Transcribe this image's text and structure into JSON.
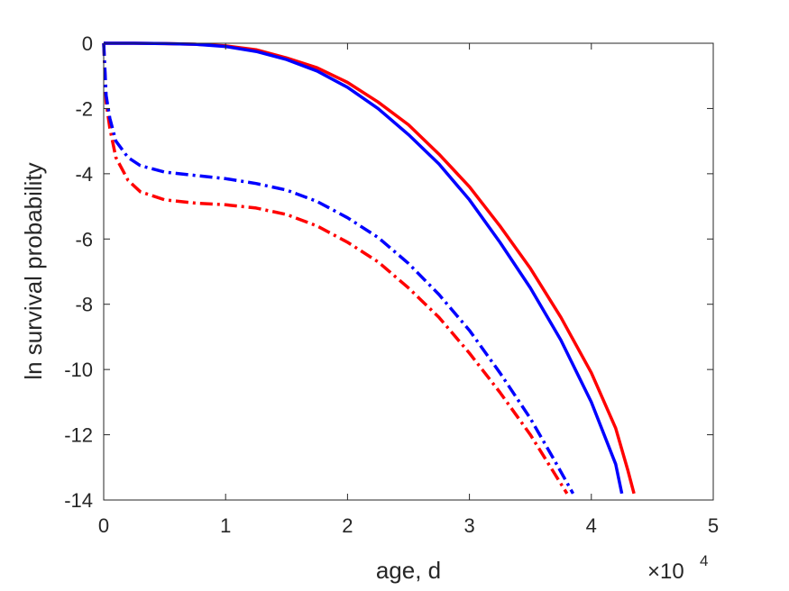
{
  "chart_data": {
    "type": "line",
    "title": "",
    "xlabel": "age, d",
    "ylabel": "ln survival probability",
    "x_multiplier": {
      "base": "×10",
      "exponent": "4"
    },
    "xlim": [
      0,
      5
    ],
    "ylim": [
      -14,
      0
    ],
    "xticks": [
      0,
      1,
      2,
      3,
      4,
      5
    ],
    "yticks": [
      0,
      -2,
      -4,
      -6,
      -8,
      -10,
      -12,
      -14
    ],
    "grid": false,
    "series": [
      {
        "color": "#ff0000",
        "style": "solid",
        "x": [
          0,
          0.25,
          0.5,
          0.75,
          1.0,
          1.25,
          1.5,
          1.75,
          2.0,
          2.25,
          2.5,
          2.75,
          3.0,
          3.25,
          3.5,
          3.75,
          4.0,
          4.2,
          4.3,
          4.35
        ],
        "y": [
          0,
          0,
          -0.01,
          -0.03,
          -0.08,
          -0.2,
          -0.45,
          -0.75,
          -1.2,
          -1.8,
          -2.5,
          -3.4,
          -4.4,
          -5.6,
          -6.9,
          -8.4,
          -10.1,
          -11.8,
          -13.1,
          -13.8
        ]
      },
      {
        "color": "#0000ff",
        "style": "solid",
        "x": [
          0,
          0.25,
          0.5,
          0.75,
          1.0,
          1.25,
          1.5,
          1.75,
          2.0,
          2.25,
          2.5,
          2.75,
          3.0,
          3.25,
          3.5,
          3.75,
          4.0,
          4.2,
          4.25
        ],
        "y": [
          0,
          0,
          -0.01,
          -0.03,
          -0.1,
          -0.25,
          -0.5,
          -0.85,
          -1.35,
          -2.0,
          -2.8,
          -3.7,
          -4.8,
          -6.1,
          -7.5,
          -9.1,
          -11.0,
          -12.9,
          -13.8
        ]
      },
      {
        "color": "#ff0000",
        "style": "dashdot",
        "x": [
          0,
          0.02,
          0.05,
          0.1,
          0.2,
          0.3,
          0.5,
          0.75,
          1.0,
          1.25,
          1.5,
          1.75,
          2.0,
          2.25,
          2.5,
          2.75,
          3.0,
          3.25,
          3.5,
          3.7,
          3.8
        ],
        "y": [
          0,
          -1.8,
          -2.6,
          -3.5,
          -4.2,
          -4.55,
          -4.8,
          -4.9,
          -4.95,
          -5.05,
          -5.25,
          -5.6,
          -6.1,
          -6.7,
          -7.5,
          -8.4,
          -9.5,
          -10.7,
          -12.0,
          -13.2,
          -13.8
        ]
      },
      {
        "color": "#0000ff",
        "style": "dashdot",
        "x": [
          0,
          0.02,
          0.05,
          0.1,
          0.2,
          0.3,
          0.5,
          0.75,
          1.0,
          1.25,
          1.5,
          1.75,
          2.0,
          2.25,
          2.5,
          2.75,
          3.0,
          3.25,
          3.5,
          3.7,
          3.85
        ],
        "y": [
          0,
          -1.6,
          -2.3,
          -3.0,
          -3.5,
          -3.75,
          -3.95,
          -4.05,
          -4.15,
          -4.3,
          -4.5,
          -4.85,
          -5.35,
          -5.95,
          -6.75,
          -7.7,
          -8.8,
          -10.1,
          -11.5,
          -12.8,
          -13.8
        ]
      }
    ]
  }
}
